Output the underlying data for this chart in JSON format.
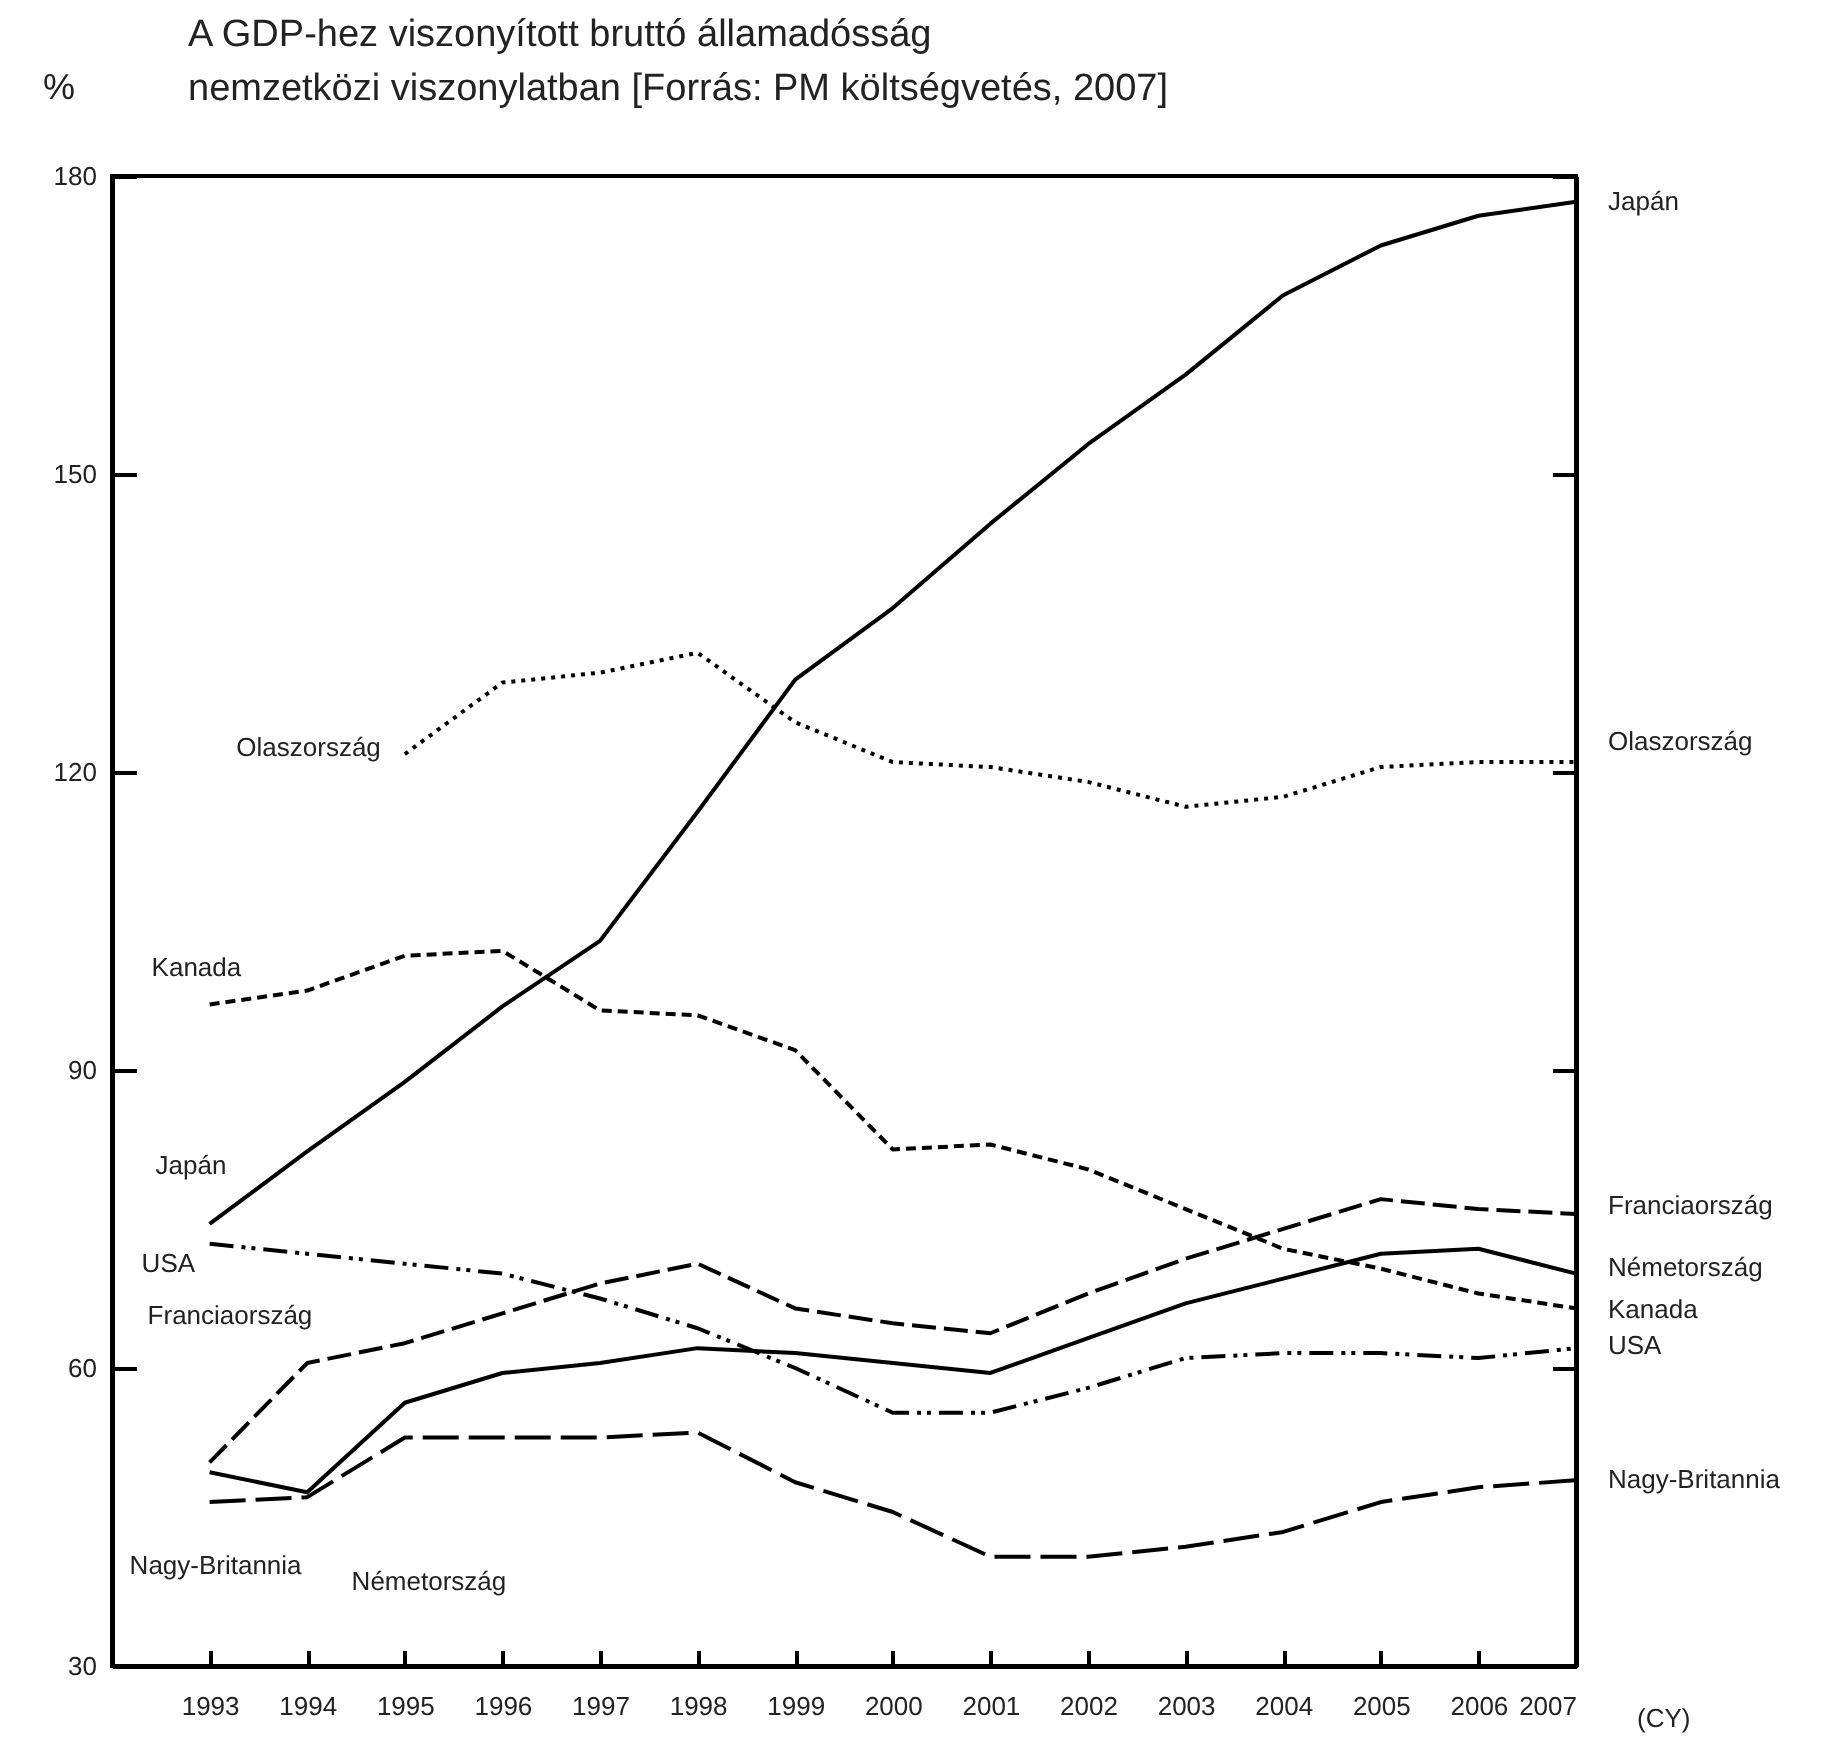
{
  "chart_data": {
    "type": "line",
    "title": "A GDP-hez viszonyított bruttó államadósság\nnemzetközi viszonylatban [Forrás: PM költségvetés, 2007]",
    "ylabel": "%",
    "xlabel": "(CY)",
    "x": [
      1993,
      1994,
      1995,
      1996,
      1997,
      1998,
      1999,
      2000,
      2001,
      2002,
      2003,
      2004,
      2005,
      2006,
      2007
    ],
    "xlim": [
      1992,
      2007
    ],
    "xticks": [
      1993,
      1994,
      1995,
      1996,
      1997,
      1998,
      1999,
      2000,
      2001,
      2002,
      2003,
      2004,
      2005,
      2006,
      2007
    ],
    "ylim": [
      30,
      180
    ],
    "yticks": [
      30,
      60,
      90,
      120,
      150,
      180
    ],
    "grid": false,
    "legend": false,
    "series": [
      {
        "name": "Japán",
        "color": "#000000",
        "line_style": "solid",
        "values": [
          74.5,
          81.8,
          88.8,
          96.4,
          103,
          116,
          129.3,
          136.5,
          145,
          153,
          160,
          168,
          173,
          176,
          177.4
        ]
      },
      {
        "name": "Olaszország",
        "color": "#000000",
        "line_style": "dotted",
        "values": [
          null,
          null,
          121.8,
          129,
          130,
          132,
          125,
          121,
          120.5,
          119,
          116.5,
          117.5,
          120.5,
          121,
          121
        ]
      },
      {
        "name": "Kanada",
        "color": "#000000",
        "line_style": "dashed",
        "values": [
          96.6,
          98,
          101.5,
          102,
          96,
          95.5,
          92,
          82,
          82.5,
          80,
          76,
          72,
          70,
          67.5,
          66
        ]
      },
      {
        "name": "USA",
        "color": "#000000",
        "line_style": "dashed",
        "values": [
          72.5,
          71.5,
          70.5,
          69.5,
          67,
          64,
          60,
          55.5,
          55.5,
          58,
          61,
          61.5,
          61.5,
          61,
          62
        ]
      },
      {
        "name": "Franciaország",
        "color": "#000000",
        "line_style": "dashed",
        "values": [
          50.5,
          60.5,
          62.5,
          65.5,
          68.5,
          70.5,
          66,
          64.5,
          63.5,
          67.5,
          71,
          74,
          77,
          76,
          75.5
        ]
      },
      {
        "name": "Németország",
        "color": "#000000",
        "line_style": "solid",
        "values": [
          49.5,
          47.5,
          56.5,
          59.5,
          60.5,
          62,
          61.5,
          60.5,
          59.5,
          63,
          66.5,
          69,
          71.5,
          72,
          69.5
        ]
      },
      {
        "name": "Nagy-Britannia",
        "color": "#000000",
        "line_style": "dashed",
        "values": [
          46.5,
          47,
          53,
          53,
          53,
          53.5,
          48.5,
          45.5,
          41,
          41,
          42,
          43.5,
          46.5,
          48,
          48.7
        ]
      }
    ]
  }
}
